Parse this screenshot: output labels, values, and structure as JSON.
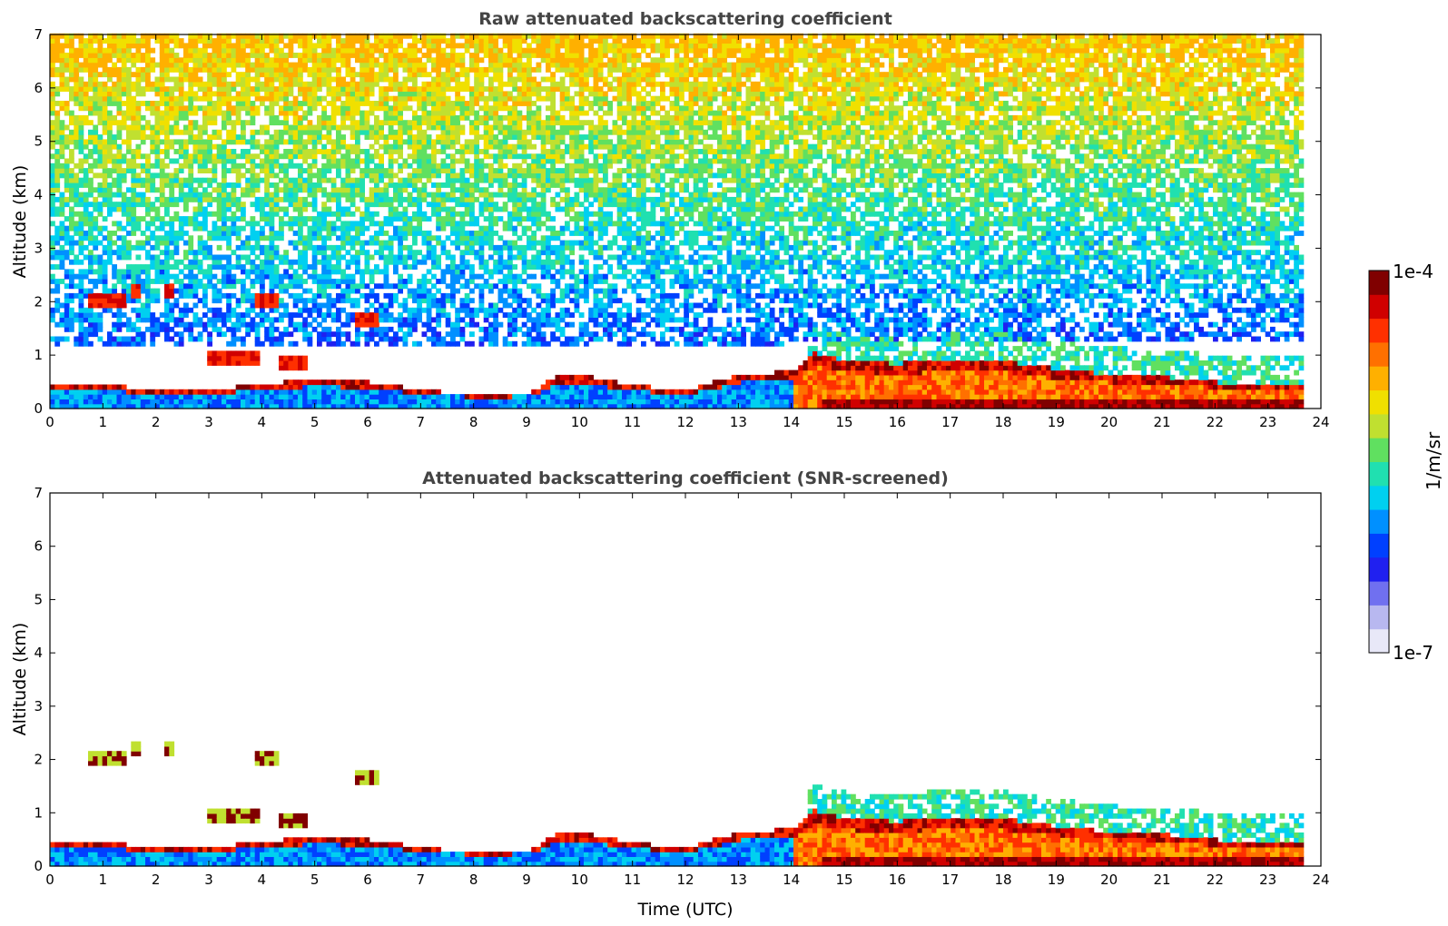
{
  "chart_data": [
    {
      "type": "heatmap",
      "id": "raw",
      "title": "Raw attenuated backscattering coefficient",
      "xlabel": "",
      "ylabel": "Altitude (km)",
      "xlim": [
        0,
        24
      ],
      "ylim": [
        0,
        7
      ],
      "xticks": [
        "0",
        "1",
        "2",
        "3",
        "4",
        "5",
        "6",
        "7",
        "8",
        "9",
        "10",
        "11",
        "12",
        "13",
        "14",
        "15",
        "16",
        "17",
        "18",
        "19",
        "20",
        "21",
        "22",
        "23",
        "24"
      ],
      "yticks": [
        "0",
        "1",
        "2",
        "3",
        "4",
        "5",
        "6",
        "7"
      ],
      "data_end_time": 23.65,
      "boundary_layer_top_km": [
        [
          0,
          0.4
        ],
        [
          1,
          0.38
        ],
        [
          2,
          0.33
        ],
        [
          3,
          0.3
        ],
        [
          4,
          0.42
        ],
        [
          5,
          0.5
        ],
        [
          6,
          0.45
        ],
        [
          7,
          0.3
        ],
        [
          8,
          0.22
        ],
        [
          9,
          0.25
        ],
        [
          9.5,
          0.55
        ],
        [
          10,
          0.58
        ],
        [
          11,
          0.38
        ],
        [
          12,
          0.3
        ],
        [
          13,
          0.6
        ],
        [
          14,
          0.65
        ],
        [
          14.4,
          1.0
        ],
        [
          15,
          0.85
        ],
        [
          16,
          0.8
        ],
        [
          17,
          0.9
        ],
        [
          18,
          0.85
        ],
        [
          19,
          0.7
        ],
        [
          20,
          0.6
        ],
        [
          21,
          0.55
        ],
        [
          22,
          0.45
        ],
        [
          23,
          0.42
        ],
        [
          23.6,
          0.42
        ]
      ],
      "elevated_layers": [
        {
          "t0": 0.7,
          "t1": 1.4,
          "alt_km": 2.0
        },
        {
          "t0": 1.5,
          "t1": 1.7,
          "alt_km": 2.15
        },
        {
          "t0": 2.1,
          "t1": 2.3,
          "alt_km": 2.15
        },
        {
          "t0": 3.8,
          "t1": 4.3,
          "alt_km": 2.0
        },
        {
          "t0": 2.9,
          "t1": 3.9,
          "alt_km": 0.9
        },
        {
          "t0": 4.3,
          "t1": 4.8,
          "alt_km": 0.82
        },
        {
          "t0": 5.7,
          "t1": 6.2,
          "alt_km": 1.6
        }
      ]
    },
    {
      "type": "heatmap",
      "id": "screened",
      "title": "Attenuated backscattering coefficient (SNR-screened)",
      "xlabel": "Time (UTC)",
      "ylabel": "Altitude (km)",
      "xlim": [
        0,
        24
      ],
      "ylim": [
        0,
        7
      ],
      "xticks": [
        "0",
        "1",
        "2",
        "3",
        "4",
        "5",
        "6",
        "7",
        "8",
        "9",
        "10",
        "11",
        "12",
        "13",
        "14",
        "15",
        "16",
        "17",
        "18",
        "19",
        "20",
        "21",
        "22",
        "23",
        "24"
      ],
      "yticks": [
        "0",
        "1",
        "2",
        "3",
        "4",
        "5",
        "6",
        "7"
      ],
      "data_end_time": 23.65
    }
  ],
  "colorbar": {
    "label": "1/m/sr",
    "max_label": "1e-4",
    "min_label": "1e-7",
    "colors": [
      "#e8e8f8",
      "#b8b8f0",
      "#7070f0",
      "#2020f0",
      "#0040ff",
      "#0090ff",
      "#00d0f0",
      "#20e0b0",
      "#60e060",
      "#c0e030",
      "#f0e000",
      "#ffb000",
      "#ff7000",
      "#ff3000",
      "#d00000",
      "#800000"
    ]
  }
}
